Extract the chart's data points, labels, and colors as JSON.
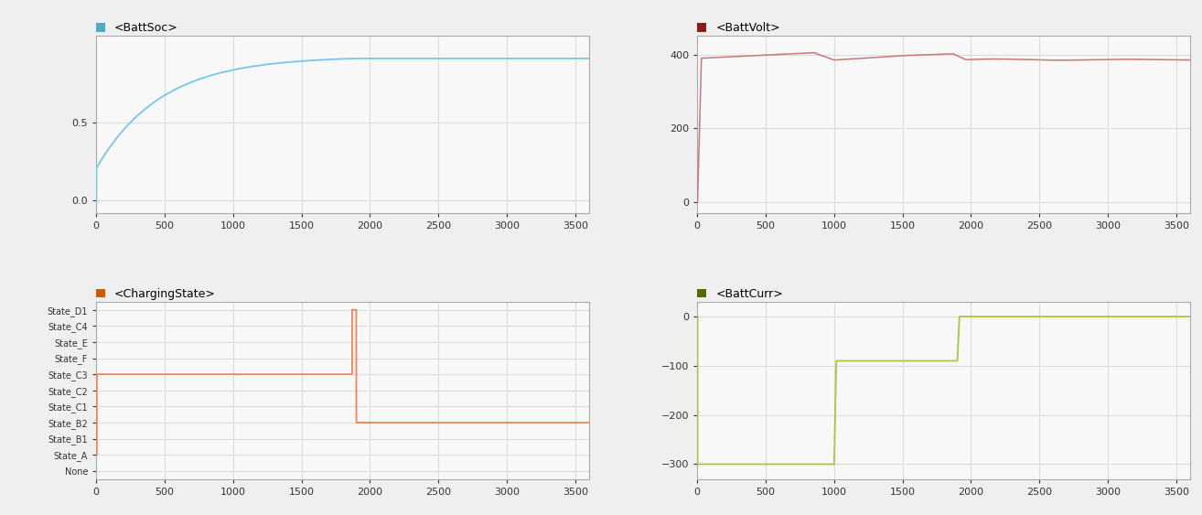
{
  "title_battsoc": "<BattSoc>",
  "title_battvolt": "<BattVolt>",
  "title_chargingstate": "<ChargingState>",
  "title_battcurr": "<BattCurr>",
  "color_battsoc": "#74C8E8",
  "color_battvolt": "#C87878",
  "color_chargingstate": "#F0845A",
  "color_battcurr": "#A8C840",
  "legend_sq_battsoc": "#4BACC6",
  "legend_sq_battvolt": "#8B1A1A",
  "legend_sq_chargingstate": "#D05A00",
  "legend_sq_battcurr": "#4B7000",
  "xmax": 3600,
  "background": "#FFFFFF",
  "plot_bg": "#F8F8F8",
  "grid_color": "#DCDCDC",
  "charging_states": [
    "None",
    "State_A",
    "State_B1",
    "State_B2",
    "State_C1",
    "State_C2",
    "State_C3",
    "State_F",
    "State_E",
    "State_C4",
    "State_D1"
  ],
  "fig_bg": "#EFEFEF"
}
